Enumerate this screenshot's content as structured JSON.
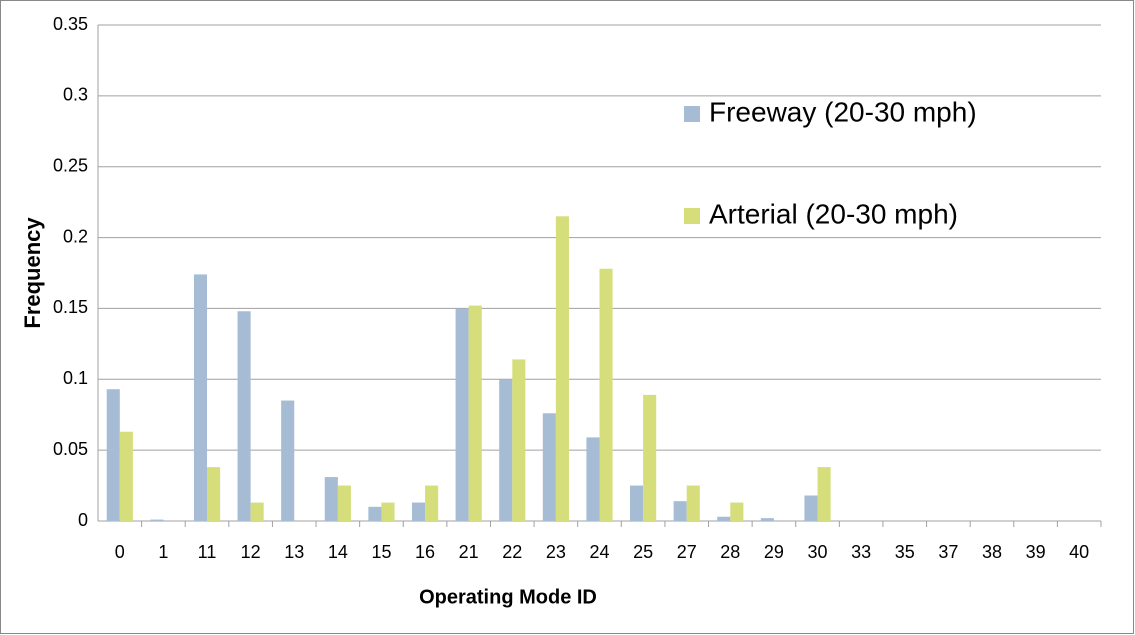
{
  "chart_data": {
    "type": "bar",
    "x_label": "Operating Mode ID",
    "y_label": "Frequency",
    "categories": [
      "0",
      "1",
      "11",
      "12",
      "13",
      "14",
      "15",
      "16",
      "21",
      "22",
      "23",
      "24",
      "25",
      "27",
      "28",
      "29",
      "30",
      "33",
      "35",
      "37",
      "38",
      "39",
      "40"
    ],
    "series": [
      {
        "name": "Freeway (20-30 mph)",
        "color": "#a6bbd4",
        "values": [
          0.093,
          0.001,
          0.174,
          0.148,
          0.085,
          0.031,
          0.01,
          0.013,
          0.15,
          0.1,
          0.076,
          0.059,
          0.025,
          0.014,
          0.003,
          0.002,
          0.018,
          0,
          0,
          0,
          0,
          0,
          0
        ]
      },
      {
        "name": "Arterial (20-30 mph)",
        "color": "#d5de7b",
        "values": [
          0.063,
          0,
          0.038,
          0.013,
          0,
          0.025,
          0.013,
          0.025,
          0.152,
          0.114,
          0.215,
          0.178,
          0.089,
          0.025,
          0.013,
          0,
          0.038,
          0,
          0,
          0,
          0,
          0,
          0
        ]
      }
    ],
    "ylim": [
      0,
      0.35
    ],
    "yticks": [
      0,
      0.05,
      0.1,
      0.15,
      0.2,
      0.25,
      0.3,
      0.35
    ],
    "grid": true
  }
}
